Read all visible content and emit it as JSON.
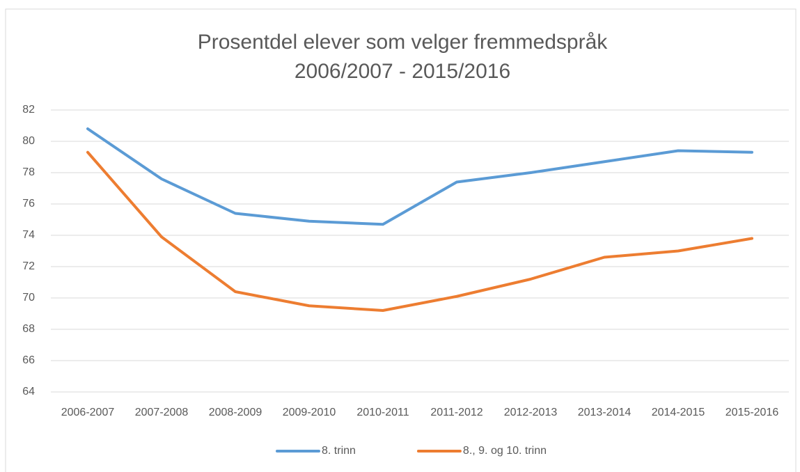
{
  "chart_data": {
    "type": "line",
    "title": "Prosentdel elever som velger fremmedspråk",
    "subtitle": "2006/2007 - 2015/2016",
    "categories": [
      "2006-2007",
      "2007-2008",
      "2008-2009",
      "2009-2010",
      "2010-2011",
      "2011-2012",
      "2012-2013",
      "2013-2014",
      "2014-2015",
      "2015-2016"
    ],
    "series": [
      {
        "name": "8. trinn",
        "color": "#5b9bd5",
        "values": [
          80.8,
          77.6,
          75.4,
          74.9,
          74.7,
          77.4,
          78.0,
          78.7,
          79.4,
          79.3
        ]
      },
      {
        "name": "8., 9. og 10. trinn",
        "color": "#ed7d31",
        "values": [
          79.3,
          73.9,
          70.4,
          69.5,
          69.2,
          70.1,
          71.2,
          72.6,
          73.0,
          73.8
        ]
      }
    ],
    "ylim": [
      64,
      82
    ],
    "yticks": [
      64,
      66,
      68,
      70,
      72,
      74,
      76,
      78,
      80,
      82
    ],
    "grid": true,
    "legend": "bottom"
  }
}
